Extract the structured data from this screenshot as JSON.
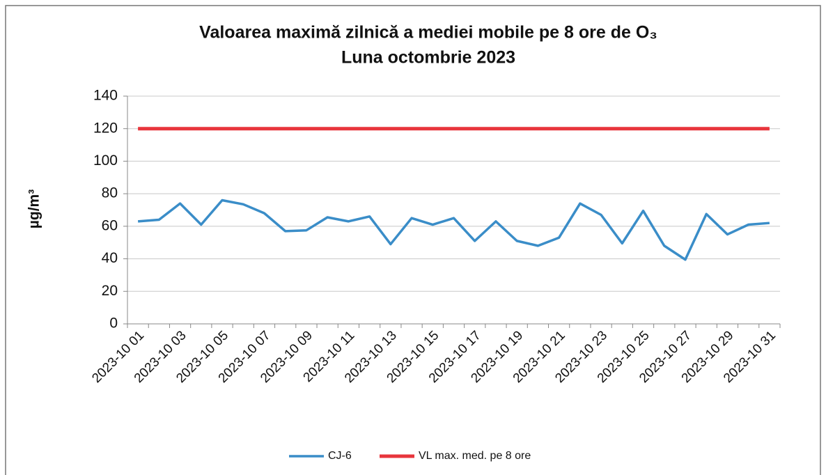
{
  "chart_data": {
    "type": "line",
    "title": [
      "Valoarea maximă zilnică a mediei mobile pe 8 ore de O₃",
      "Luna octombrie  2023"
    ],
    "y_label": "µg/m³",
    "categories": [
      "2023-10 01",
      null,
      "2023-10 03",
      null,
      "2023-10 05",
      null,
      "2023-10 07",
      null,
      "2023-10 09",
      null,
      "2023-10 11",
      null,
      "2023-10 13",
      null,
      "2023-10 15",
      null,
      "2023-10 17",
      null,
      "2023-10 19",
      null,
      "2023-10 21",
      null,
      "2023-10 23",
      null,
      "2023-10 25",
      null,
      "2023-10 27",
      null,
      "2023-10 29",
      null,
      "2023-10 31"
    ],
    "series": [
      {
        "name": "CJ-6",
        "color": "#3a8dc8",
        "values": [
          63,
          64,
          74,
          61,
          76,
          73.5,
          68,
          57,
          57.5,
          65.5,
          63,
          66,
          49,
          65,
          61,
          65,
          51,
          63,
          51,
          48,
          53,
          74,
          67,
          49.5,
          69.5,
          48,
          39.5,
          67.5,
          55,
          61,
          62
        ]
      },
      {
        "name": "VL max. med. pe 8 ore",
        "color": "#e8353c",
        "values": [
          120,
          120,
          120,
          120,
          120,
          120,
          120,
          120,
          120,
          120,
          120,
          120,
          120,
          120,
          120,
          120,
          120,
          120,
          120,
          120,
          120,
          120,
          120,
          120,
          120,
          120,
          120,
          120,
          120,
          120,
          120
        ]
      }
    ],
    "ylim": [
      0,
      140
    ],
    "yticks": [
      0,
      20,
      40,
      60,
      80,
      100,
      120,
      140
    ],
    "grid": true,
    "legend": "bottom"
  }
}
